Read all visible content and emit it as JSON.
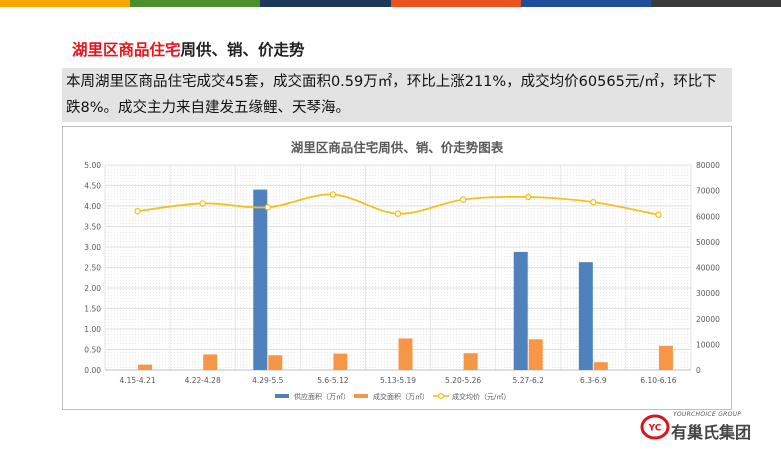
{
  "header": {
    "title_highlight": "湖里区商品住宅",
    "title_rest": "周供、销、价走势",
    "colors": [
      "#f6a800",
      "#4a8f2b",
      "#1b3a5b",
      "#e9531d",
      "#1f4e9c",
      "#3a3a3a"
    ]
  },
  "summary": {
    "text": "本周湖里区商品住宅成交45套，成交面积0.59万㎡，环比上涨211%，成交均价60565元/㎡，环比下跌8%。成交主力来自建发五缘鲤、天琴海。"
  },
  "chart_data": {
    "type": "bar",
    "title": "湖里区商品住宅周供、销、价走势图表",
    "categories": [
      "4.15-4.21",
      "4.22-4.28",
      "4.29-5.5",
      "5.6-5.12",
      "5.13-5.19",
      "5.20-5.26",
      "5.27-6.2",
      "6.3-6.9",
      "6.10-6.16"
    ],
    "left_axis": {
      "min": 0,
      "max": 5,
      "step": 0.5,
      "ticks": [
        "0.00",
        "0.50",
        "1.00",
        "1.50",
        "2.00",
        "2.50",
        "3.00",
        "3.50",
        "4.00",
        "4.50",
        "5.00"
      ]
    },
    "right_axis": {
      "min": 0,
      "max": 80000,
      "step": 10000,
      "ticks": [
        "0",
        "10000",
        "20000",
        "30000",
        "40000",
        "50000",
        "60000",
        "70000",
        "80000"
      ]
    },
    "series": [
      {
        "name": "供应面积（万㎡）",
        "type": "bar",
        "axis": "left",
        "color": "#4f81bd",
        "values": [
          0,
          0,
          4.4,
          0,
          0,
          0,
          2.88,
          2.63,
          0
        ]
      },
      {
        "name": "成交面积（万㎡）",
        "type": "bar",
        "axis": "left",
        "color": "#f79646",
        "values": [
          0.13,
          0.38,
          0.36,
          0.4,
          0.77,
          0.41,
          0.75,
          0.19,
          0.59
        ]
      },
      {
        "name": "成交均价（元/㎡）",
        "type": "line",
        "axis": "right",
        "color": "#f2c218",
        "values": [
          62000,
          65000,
          63500,
          68500,
          61000,
          66500,
          67500,
          65500,
          60565
        ]
      }
    ],
    "grid": true,
    "legend": "bottom"
  },
  "logo": {
    "en": "YOURCHOICE GROUP",
    "cn": "有巢氏集团",
    "badge": "YC",
    "color": "#d7161d"
  }
}
